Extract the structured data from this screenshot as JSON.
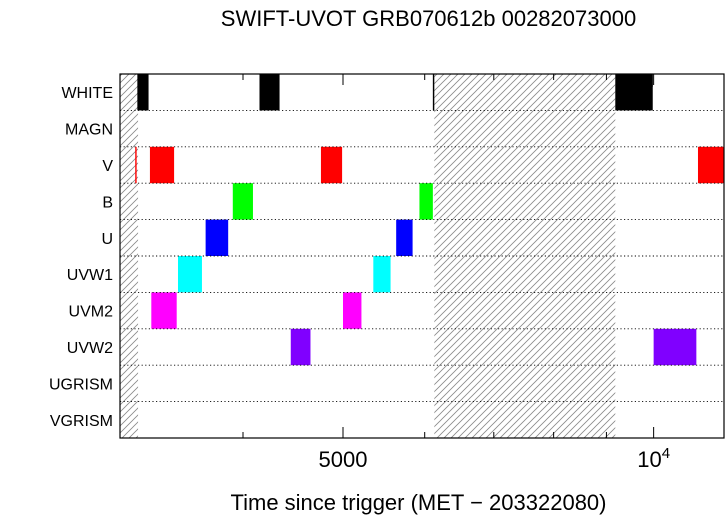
{
  "chart_data": {
    "type": "timeline",
    "title": "SWIFT-UVOT GRB070612b 00282073000",
    "xlabel": "Time since trigger (MET − 203322080)",
    "x_scale": "log",
    "xlim": [
      3040,
      11700
    ],
    "x_ticks": [
      {
        "value": 5000,
        "label": "5000",
        "sup": ""
      },
      {
        "value": 10000,
        "label": "10",
        "sup": "4"
      }
    ],
    "x_minor_ticks": [
      4000,
      6000,
      7000,
      8000,
      9000
    ],
    "grid": "dotted horizontal row separators",
    "rows": [
      "WHITE",
      "MAGN",
      "V",
      "B",
      "U",
      "UVW1",
      "UVM2",
      "UVW2",
      "UGRISM",
      "VGRISM"
    ],
    "filter_colors": {
      "WHITE": "#000000",
      "V": "#ff0000",
      "B": "#00ff00",
      "U": "#0000ff",
      "UVW1": "#00ffff",
      "UVM2": "#ff00ff",
      "UVW2": "#8000ff"
    },
    "no_coverage_hatched": [
      {
        "start": 3040,
        "end": 3165
      },
      {
        "start": 6130,
        "end": 9180
      }
    ],
    "exposures": [
      {
        "filter": "WHITE",
        "start": 3160,
        "end": 3240
      },
      {
        "filter": "WHITE",
        "start": 4150,
        "end": 4340
      },
      {
        "filter": "WHITE",
        "start": 6110,
        "end": 6130
      },
      {
        "filter": "WHITE",
        "start": 9180,
        "end": 9980
      },
      {
        "filter": "WHITE",
        "start": 9900,
        "end": 9980,
        "top_only": true
      },
      {
        "filter": "V",
        "start": 3145,
        "end": 3155
      },
      {
        "filter": "V",
        "start": 3250,
        "end": 3430
      },
      {
        "filter": "V",
        "start": 4760,
        "end": 4990
      },
      {
        "filter": "V",
        "start": 11040,
        "end": 11700
      },
      {
        "filter": "B",
        "start": 3910,
        "end": 4090
      },
      {
        "filter": "B",
        "start": 5930,
        "end": 6110
      },
      {
        "filter": "U",
        "start": 3680,
        "end": 3870
      },
      {
        "filter": "U",
        "start": 5630,
        "end": 5840
      },
      {
        "filter": "UVW1",
        "start": 3460,
        "end": 3650
      },
      {
        "filter": "UVW1",
        "start": 5350,
        "end": 5560
      },
      {
        "filter": "UVM2",
        "start": 3260,
        "end": 3450
      },
      {
        "filter": "UVM2",
        "start": 5000,
        "end": 5210
      },
      {
        "filter": "UVW2",
        "start": 4450,
        "end": 4650
      },
      {
        "filter": "UVW2",
        "start": 10000,
        "end": 11000
      }
    ]
  }
}
